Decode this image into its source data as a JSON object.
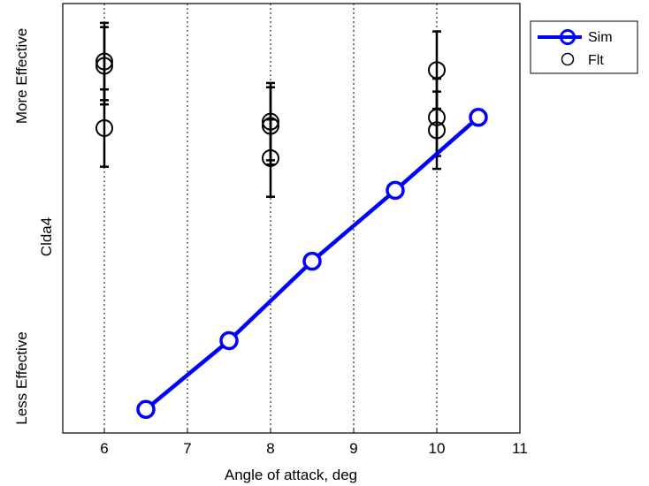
{
  "chart_data": {
    "type": "scatter",
    "xlabel": "Angle of attack, deg",
    "ylabel": "Clda4",
    "y_top_label": "More Effective",
    "y_bottom_label": "Less Effective",
    "xlim": [
      5.5,
      11
    ],
    "ylim": [
      0,
      1
    ],
    "xticks": [
      "6",
      "7",
      "8",
      "9",
      "10",
      "11"
    ],
    "xtick_values": [
      6,
      7,
      8,
      9,
      10,
      11
    ],
    "grid": "vertical-dotted",
    "legend_position": "outside-top-right",
    "series": [
      {
        "name": "Sim",
        "style": "line-with-markers",
        "color": "#0000ff",
        "points": [
          {
            "x": 6.5,
            "y": 0.055
          },
          {
            "x": 7.5,
            "y": 0.215
          },
          {
            "x": 8.5,
            "y": 0.4
          },
          {
            "x": 9.5,
            "y": 0.565
          },
          {
            "x": 10.5,
            "y": 0.735
          }
        ]
      },
      {
        "name": "Flt",
        "style": "markers-with-errorbars",
        "color": "#000000",
        "points": [
          {
            "x": 6,
            "y": 0.865,
            "lo": 0.775,
            "hi": 0.955
          },
          {
            "x": 6,
            "y": 0.855,
            "lo": 0.765,
            "hi": 0.945
          },
          {
            "x": 6,
            "y": 0.71,
            "lo": 0.62,
            "hi": 0.8
          },
          {
            "x": 8,
            "y": 0.725,
            "lo": 0.635,
            "hi": 0.815
          },
          {
            "x": 8,
            "y": 0.715,
            "lo": 0.625,
            "hi": 0.805
          },
          {
            "x": 8,
            "y": 0.64,
            "lo": 0.55,
            "hi": 0.73
          },
          {
            "x": 10,
            "y": 0.845,
            "lo": 0.755,
            "hi": 0.935
          },
          {
            "x": 10,
            "y": 0.735,
            "lo": 0.645,
            "hi": 0.825
          },
          {
            "x": 10,
            "y": 0.705,
            "lo": 0.615,
            "hi": 0.795
          }
        ]
      }
    ]
  }
}
